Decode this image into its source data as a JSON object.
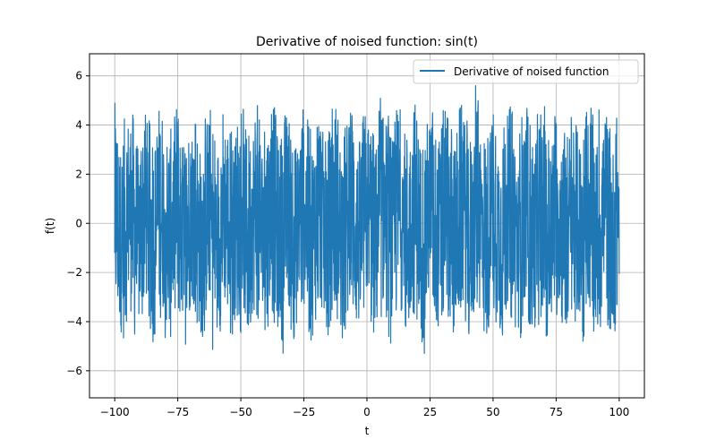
{
  "chart_data": {
    "type": "line",
    "title": "Derivative of noised function: sin(t)",
    "xlabel": "t",
    "ylabel": "f(t)",
    "xlim": [
      -110,
      110
    ],
    "ylim": [
      -7.1,
      6.9
    ],
    "xticks": [
      -100,
      -75,
      -50,
      -25,
      0,
      25,
      50,
      75,
      100
    ],
    "xtick_labels": [
      "−100",
      "−75",
      "−50",
      "−25",
      "0",
      "25",
      "50",
      "75",
      "100"
    ],
    "yticks": [
      -6,
      -4,
      -2,
      0,
      2,
      4,
      6
    ],
    "ytick_labels": [
      "−6",
      "−4",
      "−2",
      "0",
      "2",
      "4",
      "6"
    ],
    "grid": true,
    "legend_position": "top-right",
    "series": [
      {
        "name": "Derivative of noised function",
        "color": "#1f77b4",
        "x_range": [
          -100,
          100
        ],
        "y_min": -5.8,
        "y_max": 5.6,
        "description_of_values": "dense noisy oscillation around 0, band roughly between -4 and 4.5 with spikes to about ±5.6"
      }
    ]
  }
}
